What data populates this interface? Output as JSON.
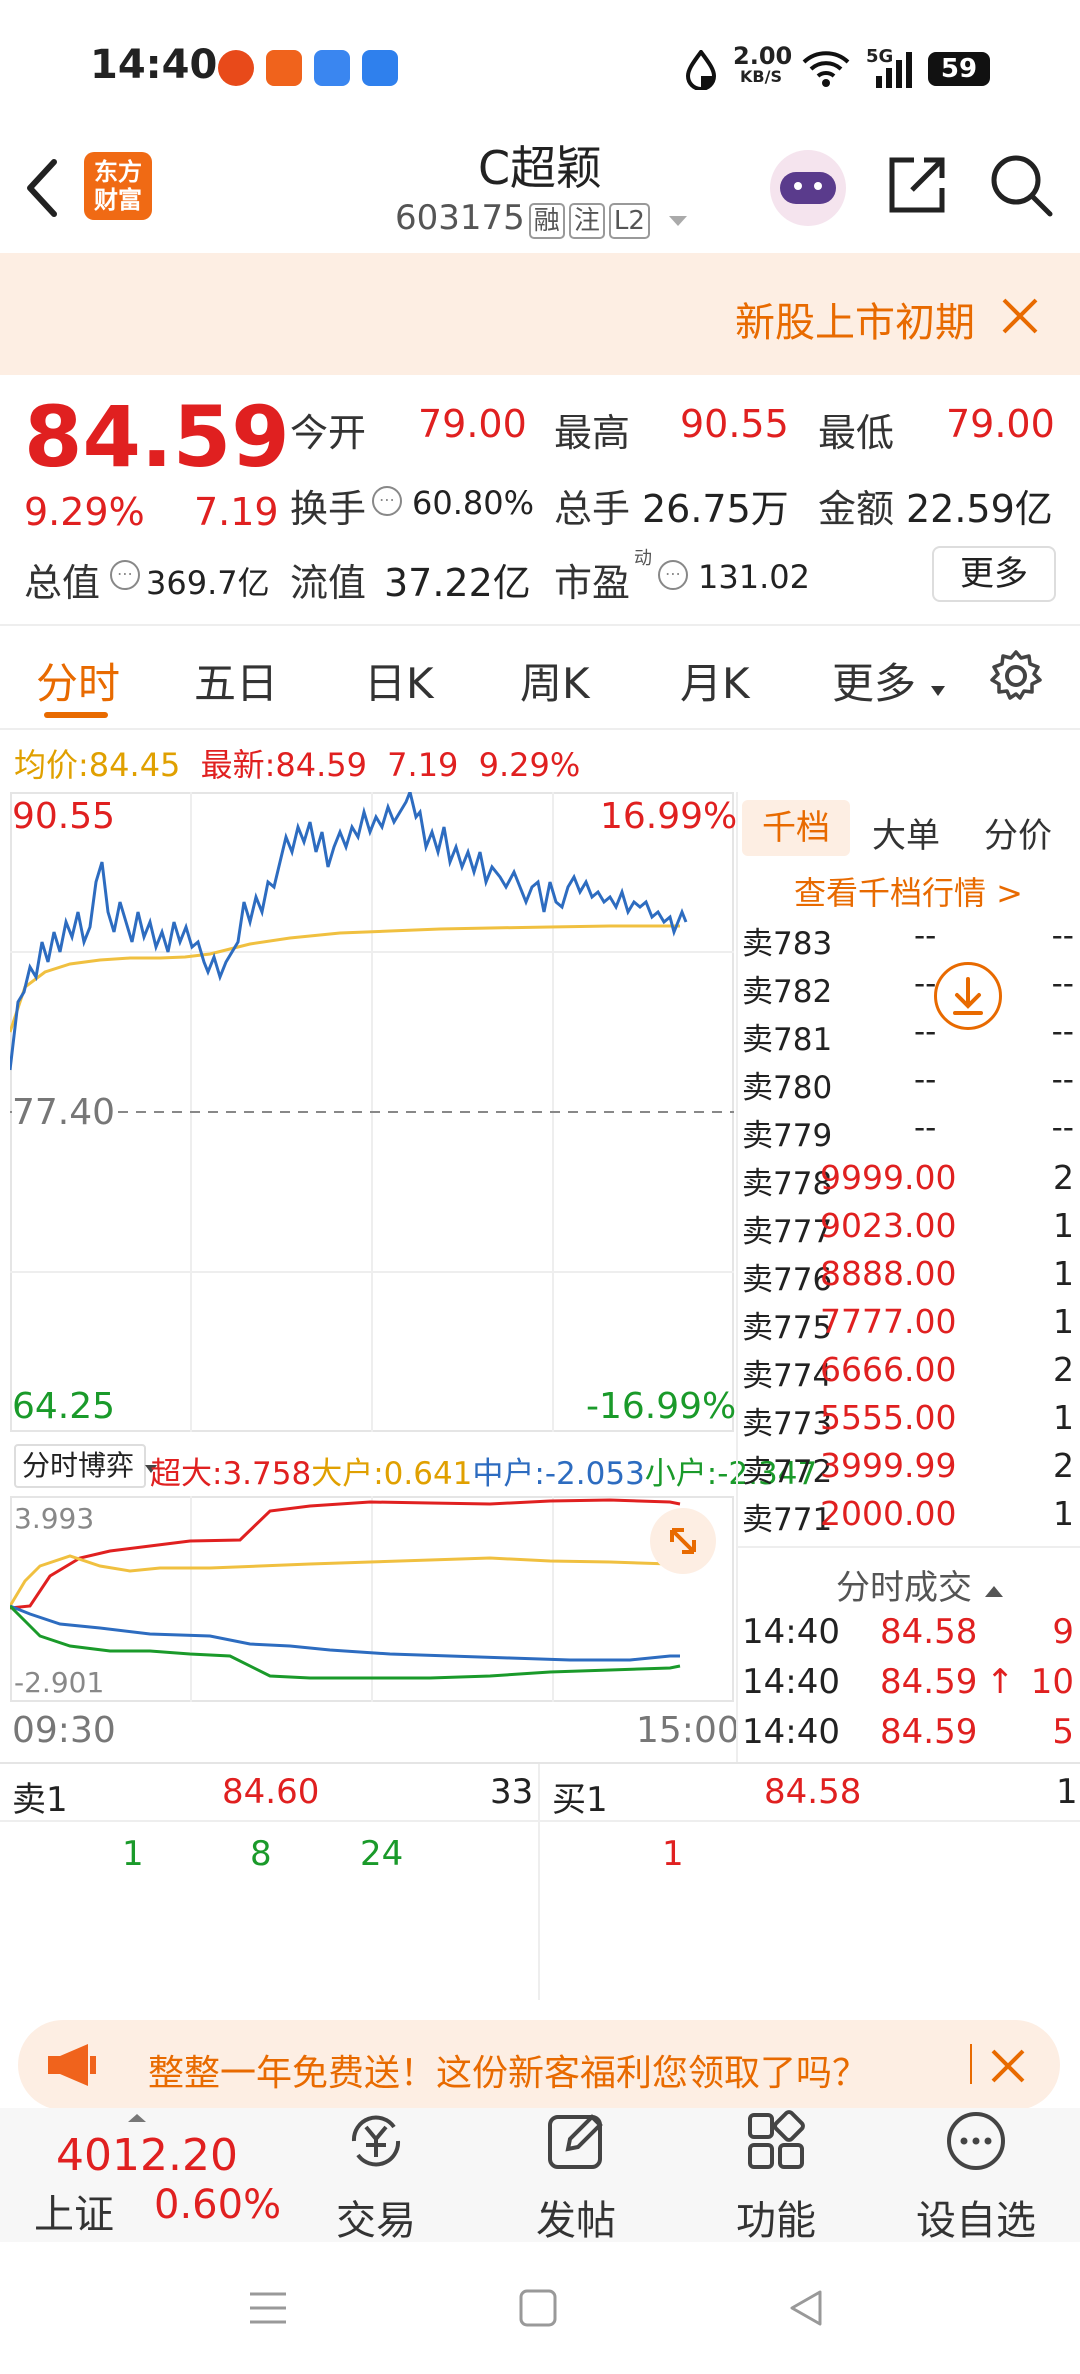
{
  "status_bar": {
    "time": "14:40",
    "net_speed_value": "2.00",
    "net_speed_unit": "KB/S",
    "network": "5G",
    "battery": "59"
  },
  "header": {
    "logo_text_1": "东方",
    "logo_text_2": "财富",
    "title": "C超颖",
    "code": "603175",
    "tag_rong": "融",
    "tag_zhu": "注",
    "tag_l2": "L2"
  },
  "banner": {
    "text": "新股上市初期"
  },
  "quote": {
    "price": "84.59",
    "change_pct": "9.29%",
    "change_amt": "7.19",
    "open_label": "今开",
    "open": "79.00",
    "high_label": "最高",
    "high": "90.55",
    "low_label": "最低",
    "low": "79.00",
    "turnover_label": "换手",
    "turnover": "60.80%",
    "volume_label": "总手",
    "volume": "26.75万",
    "amount_label": "金额",
    "amount": "22.59亿",
    "mktcap_label": "总值",
    "mktcap": "369.7亿",
    "float_label": "流值",
    "float": "37.22亿",
    "pe_label": "市盈",
    "pe_sup": "动",
    "pe": "131.02",
    "more_button": "更多"
  },
  "tabs": [
    "分时",
    "五日",
    "日K",
    "周K",
    "月K",
    "更多"
  ],
  "chart_header": {
    "avg_label": "均价:",
    "avg": "84.45",
    "latest_label": "最新:",
    "latest": "84.59",
    "chg": "7.19",
    "chg_pct": "9.29%"
  },
  "price_chart": {
    "y_high": "90.55",
    "y_high_pct": "16.99%",
    "y_mid": "77.40",
    "y_low": "64.25",
    "y_low_pct": "-16.99%",
    "x_start": "09:30",
    "x_end": "15:00",
    "price_color": "#2d6cc0",
    "avg_color": "#f0c040"
  },
  "flow_chart": {
    "selector": "分时博弈",
    "big_label": "超大:",
    "big": "3.758",
    "large_label": "大户:",
    "large": "0.641",
    "mid_label": "中户:",
    "mid": "-2.053",
    "small_label": "小户:",
    "small": "-2.347",
    "y_top": "3.993",
    "y_bottom": "-2.901"
  },
  "order_book": {
    "tabs": [
      "千档",
      "大单",
      "分价"
    ],
    "link": "查看千档行情 >",
    "asks": [
      {
        "name": "卖783",
        "price": "--",
        "vol": "--"
      },
      {
        "name": "卖782",
        "price": "--",
        "vol": "--"
      },
      {
        "name": "卖781",
        "price": "--",
        "vol": "--"
      },
      {
        "name": "卖780",
        "price": "--",
        "vol": "--"
      },
      {
        "name": "卖779",
        "price": "--",
        "vol": "--"
      },
      {
        "name": "卖778",
        "price": "9999.00",
        "vol": "2"
      },
      {
        "name": "卖777",
        "price": "9023.00",
        "vol": "1"
      },
      {
        "name": "卖776",
        "price": "8888.00",
        "vol": "1"
      },
      {
        "name": "卖775",
        "price": "7777.00",
        "vol": "1"
      },
      {
        "name": "卖774",
        "price": "6666.00",
        "vol": "2"
      },
      {
        "name": "卖773",
        "price": "5555.00",
        "vol": "1"
      },
      {
        "name": "卖772",
        "price": "3999.99",
        "vol": "2"
      },
      {
        "name": "卖771",
        "price": "2000.00",
        "vol": "1"
      }
    ],
    "trades_title": "分时成交",
    "trades": [
      {
        "time": "14:40",
        "price": "84.58",
        "vol": "9",
        "arrow": ""
      },
      {
        "time": "14:40",
        "price": "84.59",
        "vol": "10",
        "arrow": "↑"
      },
      {
        "time": "14:40",
        "price": "84.59",
        "vol": "5",
        "arrow": ""
      }
    ]
  },
  "level1": {
    "sell_label": "卖1",
    "sell_price": "84.60",
    "sell_vol": "33",
    "buy_label": "买1",
    "buy_price": "84.58",
    "buy_vol": "1",
    "sell_queue": [
      "1",
      "8",
      "24"
    ],
    "buy_queue": [
      "1"
    ]
  },
  "promo": {
    "text": "整整一年免费送！这份新客福利您领取了吗？"
  },
  "bottom_nav": {
    "index_value": "4012.20",
    "index_name": "上证",
    "index_pct": "0.60%",
    "items": [
      "交易",
      "发帖",
      "功能",
      "设自选"
    ]
  }
}
